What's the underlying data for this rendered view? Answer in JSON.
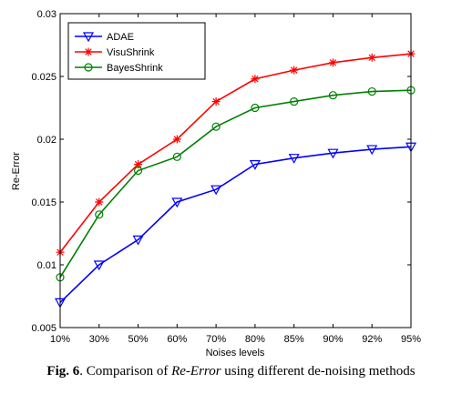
{
  "chart_data": {
    "type": "line",
    "xlabel": "Noises levels",
    "ylabel": "Re-Error",
    "categories": [
      "10%",
      "30%",
      "50%",
      "60%",
      "70%",
      "80%",
      "85%",
      "90%",
      "92%",
      "95%"
    ],
    "ylim": [
      0.005,
      0.03
    ],
    "yticks": [
      "0.005",
      "0.01",
      "0.015",
      "0.02",
      "0.025",
      "0.03"
    ],
    "legend_position": "top-left",
    "grid": false,
    "series": [
      {
        "name": "ADAE",
        "color": "#0000ff",
        "marker": "triangle-down",
        "values": [
          0.007,
          0.01,
          0.012,
          0.015,
          0.016,
          0.018,
          0.0185,
          0.0189,
          0.0192,
          0.0194
        ]
      },
      {
        "name": "VisuShrink",
        "color": "#ff0000",
        "marker": "star",
        "values": [
          0.011,
          0.015,
          0.018,
          0.02,
          0.023,
          0.0248,
          0.0255,
          0.0261,
          0.0265,
          0.0268
        ]
      },
      {
        "name": "BayesShrink",
        "color": "#008000",
        "marker": "circle",
        "values": [
          0.009,
          0.014,
          0.0175,
          0.0186,
          0.021,
          0.0225,
          0.023,
          0.0235,
          0.0238,
          0.0239
        ]
      }
    ]
  },
  "caption": {
    "fig_label": "Fig. 6",
    "part1": ". Comparison of ",
    "emphasis": "Re-Error",
    "part2": " using different de-noising methods"
  }
}
